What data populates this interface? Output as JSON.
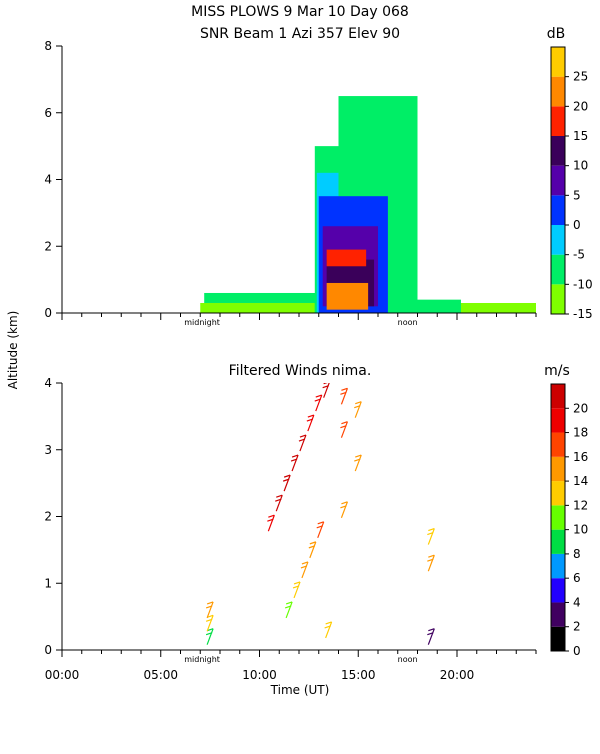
{
  "header": {
    "line1": "MISS PLOWS   9 Mar 10 Day 068",
    "line2": "SNR Beam 1 Azi 357 Elev 90"
  },
  "shared_axes": {
    "ylabel": "Altitude (km)",
    "xlabel": "Time (UT)",
    "x_tick_labels": [
      "00:00",
      "05:00",
      "10:00",
      "15:00",
      "20:00"
    ],
    "markers": [
      "midnight",
      "noon"
    ]
  },
  "colors": {
    "snr_scale": [
      "#7fff00",
      "#00ee66",
      "#00ccff",
      "#0033ff",
      "#5500aa",
      "#3a005a",
      "#ff2200",
      "#ff8800",
      "#ffcc00"
    ],
    "wind_scale": [
      "#000000",
      "#400060",
      "#2200ff",
      "#0099ff",
      "#00dd44",
      "#66ff00",
      "#ffcc00",
      "#ff9900",
      "#ff4400",
      "#ee0000",
      "#cc0000"
    ]
  },
  "chart_data": [
    {
      "type": "heatmap",
      "title": "SNR Beam 1 Azi 357 Elev 90",
      "ylabel": "Altitude (km)",
      "xlim": [
        0,
        24
      ],
      "ylim": [
        0,
        8
      ],
      "y_ticks": [
        0,
        2,
        4,
        6,
        8
      ],
      "colorbar": {
        "unit": "dB",
        "range": [
          -15,
          30
        ],
        "ticks": [
          -15,
          -10,
          -5,
          0,
          5,
          10,
          15,
          20,
          25
        ]
      },
      "regions": [
        {
          "x": [
            7.0,
            24.0
          ],
          "y": [
            0.0,
            0.3
          ],
          "snr": -12
        },
        {
          "x": [
            7.2,
            13.0
          ],
          "y": [
            0.3,
            0.6
          ],
          "snr": -10
        },
        {
          "x": [
            12.8,
            20.2
          ],
          "y": [
            0.0,
            0.4
          ],
          "snr": -8
        },
        {
          "x": [
            12.8,
            14.0
          ],
          "y": [
            0.0,
            5.0
          ],
          "snr": -6
        },
        {
          "x": [
            14.0,
            18.0
          ],
          "y": [
            0.0,
            6.5
          ],
          "snr": -10
        },
        {
          "x": [
            12.9,
            14.0
          ],
          "y": [
            0.0,
            4.2
          ],
          "snr": -3
        },
        {
          "x": [
            13.0,
            16.5
          ],
          "y": [
            0.0,
            3.5
          ],
          "snr": 0
        },
        {
          "x": [
            13.2,
            16.0
          ],
          "y": [
            0.2,
            2.6
          ],
          "snr": 5
        },
        {
          "x": [
            13.4,
            15.8
          ],
          "y": [
            0.2,
            1.6
          ],
          "snr": 12
        },
        {
          "x": [
            13.4,
            15.5
          ],
          "y": [
            0.1,
            0.9
          ],
          "snr": 20
        },
        {
          "x": [
            13.4,
            15.4
          ],
          "y": [
            1.4,
            1.9
          ],
          "snr": 17
        }
      ]
    },
    {
      "type": "scatter",
      "title": "Filtered Winds nima.",
      "ylabel": "Altitude (km)",
      "xlabel": "Time (UT)",
      "xlim": [
        0,
        24
      ],
      "ylim": [
        0,
        4
      ],
      "y_ticks": [
        0,
        1,
        2,
        3,
        4
      ],
      "x_ticks": [
        0,
        5,
        10,
        15,
        20
      ],
      "colorbar": {
        "unit": "m/s",
        "range": [
          0,
          22
        ],
        "ticks": [
          0,
          2,
          4,
          6,
          8,
          10,
          12,
          14,
          16,
          18,
          20
        ]
      },
      "series": [
        {
          "x": [
            7.5,
            7.5,
            7.5
          ],
          "altitudes": [
            0.2,
            0.4,
            0.6
          ],
          "speeds": [
            9,
            12,
            14
          ]
        },
        {
          "x": [
            10.6,
            11.0,
            11.4,
            11.8,
            12.2,
            12.6,
            13.0,
            13.4
          ],
          "altitudes": [
            1.9,
            2.2,
            2.5,
            2.8,
            3.1,
            3.4,
            3.7,
            3.9
          ],
          "speeds": [
            19,
            20,
            20,
            21,
            20,
            19,
            18,
            20
          ]
        },
        {
          "x": [
            11.5,
            11.9,
            12.3,
            12.7,
            13.1,
            13.5
          ],
          "altitudes": [
            0.6,
            0.9,
            1.2,
            1.5,
            1.8,
            0.3
          ],
          "speeds": [
            10,
            12,
            14,
            15,
            17,
            13
          ]
        },
        {
          "x": [
            14.3,
            14.3,
            14.3,
            15.0,
            15.0
          ],
          "altitudes": [
            3.8,
            3.3,
            2.1,
            3.6,
            2.8
          ],
          "speeds": [
            17,
            16,
            15,
            14,
            14
          ]
        },
        {
          "x": [
            18.7,
            18.7,
            18.7
          ],
          "altitudes": [
            0.2,
            1.3,
            1.7
          ],
          "speeds": [
            3,
            14,
            13
          ]
        }
      ]
    }
  ]
}
